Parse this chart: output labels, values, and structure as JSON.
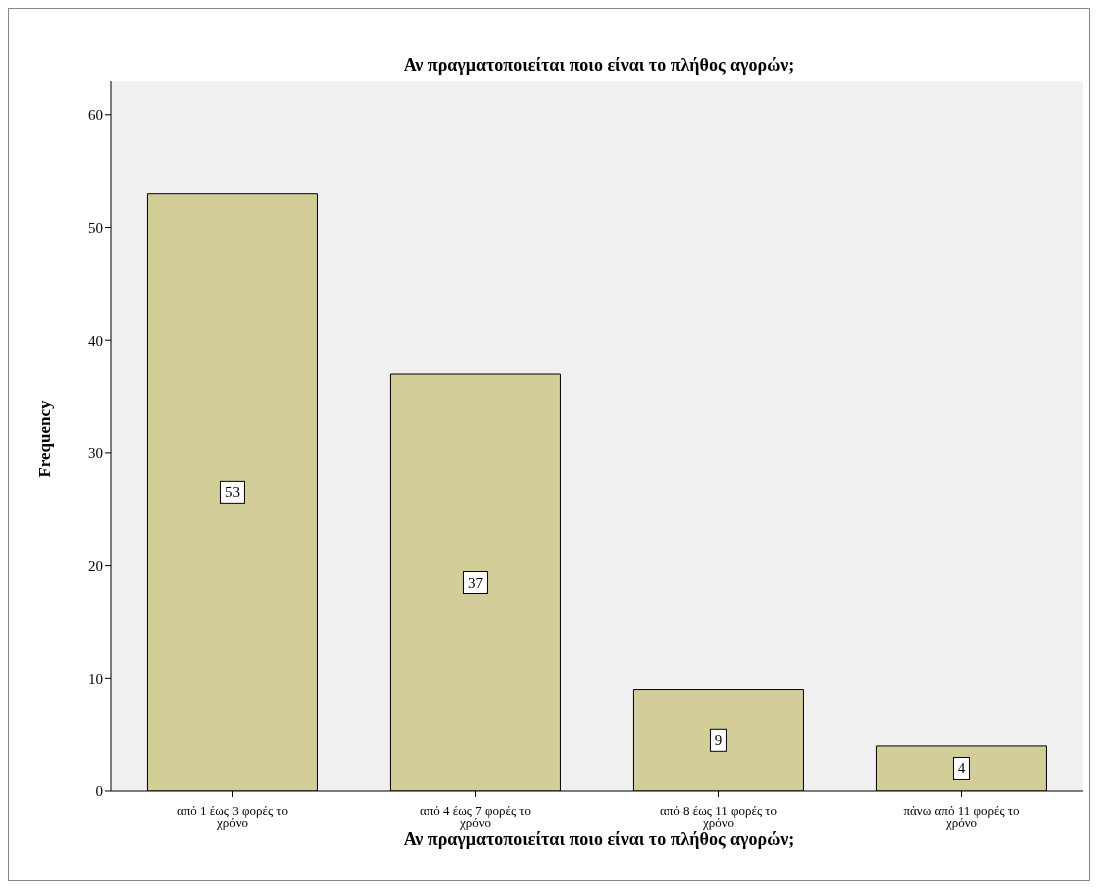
{
  "chart_data": {
    "type": "bar",
    "title": "Αν πραγματοποιείται ποιο είναι το πλήθος αγορών;",
    "xlabel": "Αν πραγματοποιείται ποιο είναι το πλήθος αγορών;",
    "ylabel": "Frequency",
    "categories": [
      "από 1 έως 3 φορές το χρόνο",
      "από 4 έως 7 φορές το χρόνο",
      "από 8 έως 11 φορές το χρόνο",
      "πάνω από 11 φορές το χρόνο"
    ],
    "values": [
      53,
      37,
      9,
      4
    ],
    "color": "#d3ce97",
    "ylim": [
      0,
      63
    ],
    "yticks": [
      0,
      10,
      20,
      30,
      40,
      50,
      60
    ],
    "data_labels": true
  }
}
